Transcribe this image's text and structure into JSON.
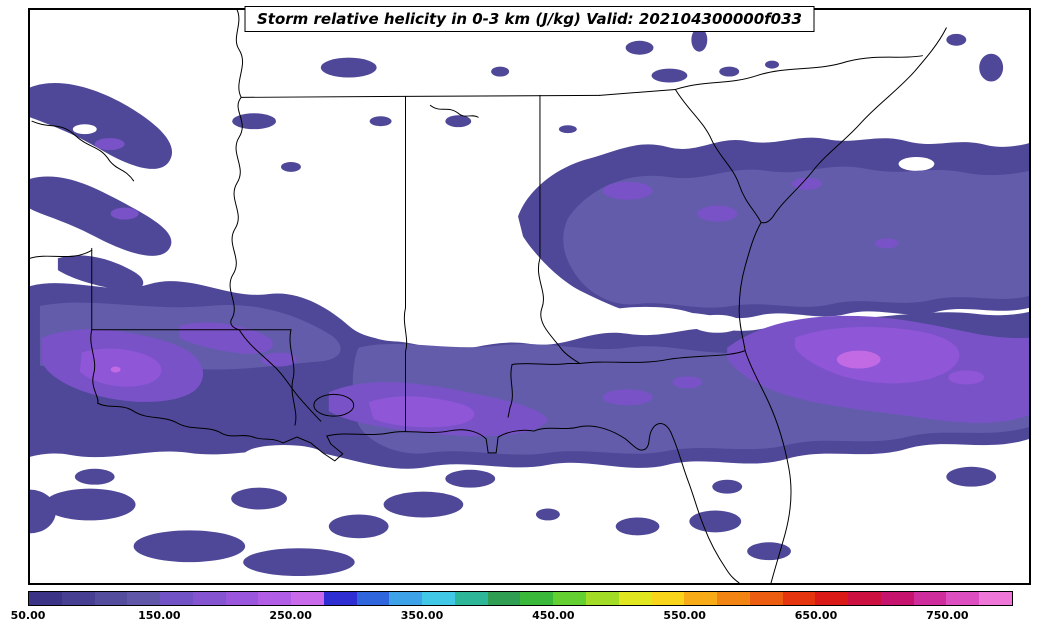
{
  "title": "Storm relative helicity in 0-3 km (J/kg) Valid: 202104300000f033",
  "colors": {
    "frame": "#000000",
    "background": "#ffffff",
    "level1": "#4f4898",
    "level2": "#635cab",
    "level3": "#7a52c8",
    "level4": "#9056d8",
    "level5": "#c16ae4"
  },
  "colorbar": {
    "min_value": 50,
    "step": 25,
    "segments_per_tick_interval": 4,
    "ticks": [
      "50.00",
      "150.00",
      "250.00",
      "350.00",
      "450.00",
      "550.00",
      "650.00",
      "750.00"
    ],
    "colors": [
      "#3b3486",
      "#463f92",
      "#544c9d",
      "#6157a9",
      "#7253c5",
      "#8554d1",
      "#9a57de",
      "#b15de5",
      "#c96aeb",
      "#2e2ed2",
      "#2f66de",
      "#3da2e8",
      "#41c8e6",
      "#2eb698",
      "#2f9e52",
      "#3ab83a",
      "#63cf30",
      "#a2dc26",
      "#e0e61f",
      "#f8d51b",
      "#f7ab17",
      "#f28414",
      "#ec5d11",
      "#e5350e",
      "#da1a17",
      "#cc1040",
      "#c5136e",
      "#cf2d9b",
      "#dd4fc0",
      "#ee77d8"
    ]
  },
  "chart_data": {
    "type": "heatmap",
    "title": "Storm relative helicity in 0-3 km (J/kg)",
    "valid": "202104300000f033",
    "units": "J/kg",
    "region": "Southeastern United States, Gulf of Mexico and western Atlantic",
    "legend_position": "bottom",
    "colorbar_ticks": [
      50,
      150,
      250,
      350,
      450,
      550,
      650,
      750
    ],
    "contour_interval": 25,
    "visible_value_range": [
      50,
      300
    ],
    "notes": "Filled contours; shaded values on map fall mostly in the 50-300 J/kg range (dark slate blue through purple, small orchid maximum near the Georgia/South Carolina coast)."
  }
}
